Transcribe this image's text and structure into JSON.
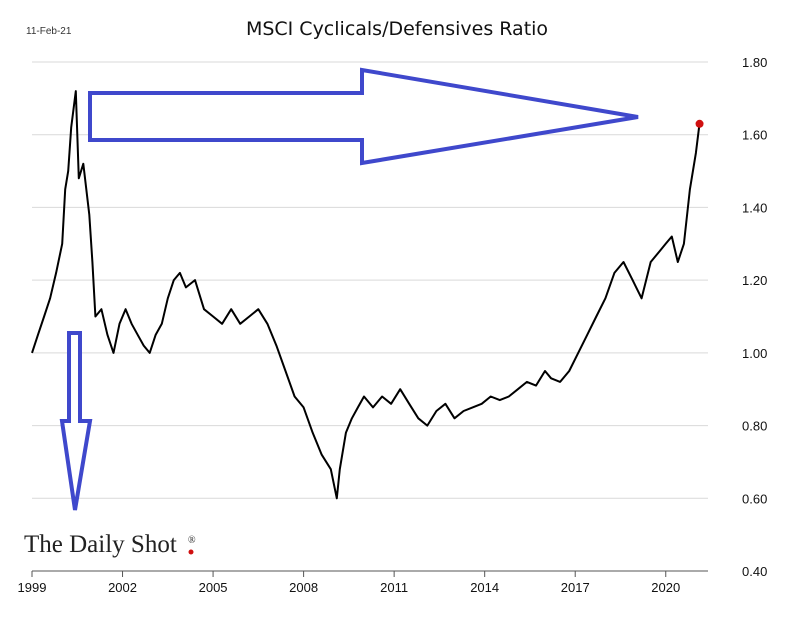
{
  "header": {
    "date": "11-Feb-21",
    "title": "MSCI Cyclicals/Defensives Ratio"
  },
  "brand": {
    "name": "The Daily Shot",
    "mark": "®"
  },
  "colors": {
    "line": "#000000",
    "arrow_fill": "#ffffff",
    "arrow_stroke": "#3f48cc",
    "last_point": "#d01010",
    "grid": "#d9d9d9",
    "axis": "#555555"
  },
  "chart_data": {
    "type": "line",
    "title": "MSCI Cyclicals/Defensives Ratio",
    "xlabel": "",
    "ylabel": "",
    "x_ticks": [
      "1999",
      "2002",
      "2005",
      "2008",
      "2011",
      "2014",
      "2017",
      "2020"
    ],
    "y_ticks": [
      "1.80",
      "1.60",
      "1.40",
      "1.20",
      "1.00",
      "0.80",
      "0.60",
      "0.40"
    ],
    "xlim": [
      1999.0,
      2021.4
    ],
    "ylim": [
      0.4,
      1.8
    ],
    "y_axis_side": "right",
    "grid": "horizontal",
    "series": [
      {
        "x": [
          1999.0,
          1999.2,
          1999.4,
          1999.6,
          1999.8,
          2000.0,
          2000.1,
          2000.2,
          2000.3,
          2000.45,
          2000.55,
          2000.7,
          2000.8,
          2000.9,
          2001.0,
          2001.1,
          2001.3,
          2001.5,
          2001.7,
          2001.9,
          2002.1,
          2002.3,
          2002.5,
          2002.7,
          2002.9,
          2003.1,
          2003.3,
          2003.5,
          2003.7,
          2003.9,
          2004.1,
          2004.4,
          2004.7,
          2005.0,
          2005.3,
          2005.6,
          2005.9,
          2006.2,
          2006.5,
          2006.8,
          2007.1,
          2007.4,
          2007.7,
          2008.0,
          2008.3,
          2008.6,
          2008.9,
          2009.1,
          2009.2,
          2009.4,
          2009.6,
          2009.8,
          2010.0,
          2010.3,
          2010.6,
          2010.9,
          2011.2,
          2011.5,
          2011.8,
          2012.1,
          2012.4,
          2012.7,
          2013.0,
          2013.3,
          2013.6,
          2013.9,
          2014.2,
          2014.5,
          2014.8,
          2015.1,
          2015.4,
          2015.7,
          2016.0,
          2016.2,
          2016.5,
          2016.8,
          2017.1,
          2017.4,
          2017.7,
          2018.0,
          2018.3,
          2018.6,
          2018.9,
          2019.2,
          2019.5,
          2019.8,
          2020.0,
          2020.2,
          2020.4,
          2020.6,
          2020.8,
          2021.0,
          2021.12
        ],
        "y": [
          1.0,
          1.05,
          1.1,
          1.15,
          1.22,
          1.3,
          1.45,
          1.5,
          1.62,
          1.72,
          1.48,
          1.52,
          1.45,
          1.38,
          1.25,
          1.1,
          1.12,
          1.05,
          1.0,
          1.08,
          1.12,
          1.08,
          1.05,
          1.02,
          1.0,
          1.05,
          1.08,
          1.15,
          1.2,
          1.22,
          1.18,
          1.2,
          1.12,
          1.1,
          1.08,
          1.12,
          1.08,
          1.1,
          1.12,
          1.08,
          1.02,
          0.95,
          0.88,
          0.85,
          0.78,
          0.72,
          0.68,
          0.6,
          0.68,
          0.78,
          0.82,
          0.85,
          0.88,
          0.85,
          0.88,
          0.86,
          0.9,
          0.86,
          0.82,
          0.8,
          0.84,
          0.86,
          0.82,
          0.84,
          0.85,
          0.86,
          0.88,
          0.87,
          0.88,
          0.9,
          0.92,
          0.91,
          0.95,
          0.93,
          0.92,
          0.95,
          1.0,
          1.05,
          1.1,
          1.15,
          1.22,
          1.25,
          1.2,
          1.15,
          1.25,
          1.28,
          1.3,
          1.32,
          1.25,
          1.3,
          1.45,
          1.55,
          1.63
        ]
      }
    ],
    "last_point": {
      "x": 2021.12,
      "y": 1.63
    }
  }
}
